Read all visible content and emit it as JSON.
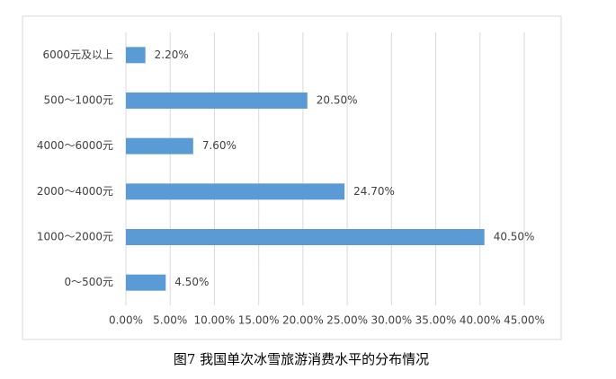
{
  "chart_data": {
    "type": "barh",
    "title": "图7 我国单次冰雪旅游消费水平的分布情况",
    "categories": [
      "6000元及以上",
      "500～1000元",
      "4000～6000元",
      "2000～4000元",
      "1000～2000元",
      "0～500元"
    ],
    "values": [
      2.2,
      20.5,
      7.6,
      24.7,
      40.5,
      4.5
    ],
    "value_labels": [
      "2.20%",
      "20.50%",
      "7.60%",
      "24.70%",
      "40.50%",
      "4.50%"
    ],
    "color": "#5b9bd5",
    "xlim": [
      0,
      45
    ],
    "xticks": [
      {
        "value": 0,
        "label": "0.00%"
      },
      {
        "value": 5,
        "label": "5.00%"
      },
      {
        "value": 10,
        "label": "10.00%"
      },
      {
        "value": 15,
        "label": "15.00%"
      },
      {
        "value": 20,
        "label": "20.00%"
      },
      {
        "value": 25,
        "label": "25.00%"
      },
      {
        "value": 30,
        "label": "30.00%"
      },
      {
        "value": 35,
        "label": "35.00%"
      },
      {
        "value": 40,
        "label": "40.00%"
      },
      {
        "value": 45,
        "label": "45.00%"
      }
    ],
    "grid": true
  }
}
